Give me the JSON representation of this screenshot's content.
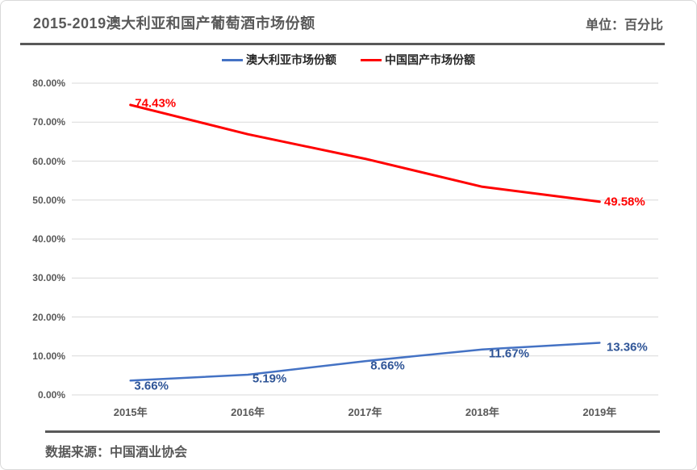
{
  "header": {
    "title": "2015-2019澳大利亚和国产葡萄酒市场份额",
    "unit_label": "单位：百分比"
  },
  "legend": {
    "items": [
      {
        "name": "australia-market-share",
        "label": "澳大利亚市场份额",
        "color": "#4472C4"
      },
      {
        "name": "china-domestic-market-share",
        "label": "中国国产市场份额",
        "color": "#FF0000"
      }
    ]
  },
  "chart_data": {
    "type": "line",
    "title": "2015-2019澳大利亚和国产葡萄酒市场份额",
    "unit": "百分比",
    "categories": [
      "2015年",
      "2016年",
      "2017年",
      "2018年",
      "2019年"
    ],
    "series": [
      {
        "name": "澳大利亚市场份额",
        "color": "#4472C4",
        "label_color": "#2F5597",
        "line_width": 2.5,
        "values": [
          3.66,
          5.19,
          8.66,
          11.67,
          13.36
        ],
        "data_labels": [
          "3.66%",
          "5.19%",
          "8.66%",
          "11.67%",
          "13.36%"
        ]
      },
      {
        "name": "中国国产市场份额",
        "color": "#FF0000",
        "label_color": "#FF0000",
        "line_width": 3,
        "values": [
          74.43,
          66.9,
          60.6,
          53.4,
          49.58
        ],
        "data_labels": [
          "74.43%",
          null,
          null,
          null,
          "49.58%"
        ]
      }
    ],
    "ylim": [
      0,
      80
    ],
    "y_tick_labels": [
      "0.00%",
      "10.00%",
      "20.00%",
      "30.00%",
      "40.00%",
      "50.00%",
      "60.00%",
      "70.00%",
      "80.00%"
    ],
    "grid": true,
    "gridline_color": "#d9d9d9",
    "legend_position": "top"
  },
  "footer": {
    "source": "数据来源：中国酒业协会"
  }
}
